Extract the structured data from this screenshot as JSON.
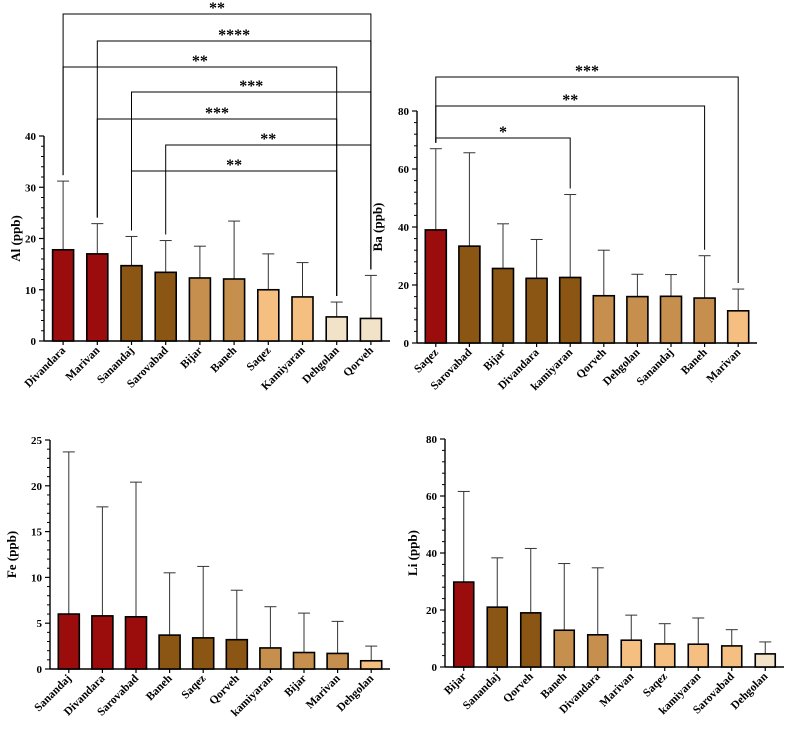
{
  "colors": {
    "dark_red": "#9b0d0d",
    "dark_brown": "#8b5514",
    "tan": "#c68f4d",
    "light_orange": "#f6bf82",
    "cream": "#f1e2c8"
  },
  "chart_data": [
    {
      "id": "al",
      "type": "bar",
      "ylabel": "Al (ppb)",
      "ylim": [
        0,
        40
      ],
      "yticks": [
        "0",
        "10",
        "20",
        "30",
        "40"
      ],
      "categories": [
        "Divandara",
        "Marivan",
        "Sanandaj",
        "Sarovabad",
        "Bijar",
        "Baneh",
        "Saqez",
        "Kamiyaran",
        "Dehgolan",
        "Qorveh"
      ],
      "values": [
        17.8,
        17.0,
        14.7,
        13.4,
        12.3,
        12.1,
        10.0,
        8.6,
        4.7,
        4.4
      ],
      "errors": [
        31.2,
        22.9,
        20.4,
        19.6,
        18.5,
        23.4,
        17.0,
        15.3,
        7.6,
        12.8
      ],
      "colors": [
        "#9b0d0d",
        "#9b0d0d",
        "#8b5514",
        "#8b5514",
        "#c68f4d",
        "#c68f4d",
        "#f6bf82",
        "#f6bf82",
        "#f1e2c8",
        "#f1e2c8"
      ],
      "brackets": [
        {
          "from": 0,
          "to": 9,
          "label": "**"
        },
        {
          "from": 1,
          "to": 9,
          "label": "****"
        },
        {
          "from": 0,
          "to": 8,
          "label": "**"
        },
        {
          "from": 2,
          "to": 9,
          "label": "***"
        },
        {
          "from": 1,
          "to": 8,
          "label": "***"
        },
        {
          "from": 3,
          "to": 9,
          "label": "**"
        },
        {
          "from": 2,
          "to": 8,
          "label": "**"
        }
      ]
    },
    {
      "id": "ba",
      "type": "bar",
      "ylabel": "Ba (ppb)",
      "ylim": [
        0,
        80
      ],
      "yticks": [
        "0",
        "20",
        "40",
        "60",
        "80"
      ],
      "categories": [
        "Saqez",
        "Sarovabad",
        "Bijar",
        "Divandara",
        "kamiyaran",
        "Qorveh",
        "Dehgolan",
        "Sanandaj",
        "Baneh",
        "Marivan"
      ],
      "values": [
        39.0,
        33.4,
        25.7,
        22.3,
        22.6,
        16.3,
        16.0,
        16.1,
        15.5,
        11.1
      ],
      "errors": [
        67.0,
        65.6,
        41.1,
        35.7,
        51.2,
        32.0,
        23.7,
        23.6,
        30.1,
        18.6
      ],
      "colors": [
        "#9b0d0d",
        "#8b5514",
        "#8b5514",
        "#8b5514",
        "#8b5514",
        "#c68f4d",
        "#c68f4d",
        "#c68f4d",
        "#c68f4d",
        "#f6bf82"
      ],
      "brackets": [
        {
          "from": 0,
          "to": 9,
          "label": "***"
        },
        {
          "from": 0,
          "to": 8,
          "label": "**"
        },
        {
          "from": 0,
          "to": 4,
          "label": "*"
        }
      ]
    },
    {
      "id": "fe",
      "type": "bar",
      "ylabel": "Fe (ppb)",
      "ylim": [
        0,
        25
      ],
      "yticks": [
        "0",
        "5",
        "10",
        "15",
        "20",
        "25"
      ],
      "categories": [
        "Sanandaj",
        "Divandara",
        "Sarovabad",
        "Baneh",
        "Saqez",
        "Qorveh",
        "kamiyaran",
        "Bijar",
        "Marivan",
        "Dehgolan"
      ],
      "values": [
        6.0,
        5.8,
        5.7,
        3.7,
        3.4,
        3.2,
        2.3,
        1.8,
        1.7,
        0.9
      ],
      "errors": [
        23.7,
        17.7,
        20.4,
        10.5,
        11.2,
        8.6,
        6.8,
        6.1,
        5.2,
        2.5
      ],
      "colors": [
        "#9b0d0d",
        "#9b0d0d",
        "#9b0d0d",
        "#8b5514",
        "#8b5514",
        "#8b5514",
        "#c68f4d",
        "#c68f4d",
        "#c68f4d",
        "#f6bf82"
      ],
      "brackets": []
    },
    {
      "id": "li",
      "type": "bar",
      "ylabel": "Li (ppb)",
      "ylim": [
        0,
        80
      ],
      "yticks": [
        "0",
        "20",
        "40",
        "60",
        "80"
      ],
      "categories": [
        "Bijar",
        "Sanandaj",
        "Qorveh",
        "Baneh",
        "Divandara",
        "Marivan",
        "Saqez",
        "kamiyaran",
        "Sarovabad",
        "Dehgolan"
      ],
      "values": [
        29.8,
        21.0,
        19.0,
        12.9,
        11.3,
        9.4,
        8.1,
        8.0,
        7.4,
        4.6
      ],
      "errors": [
        61.6,
        38.3,
        41.6,
        36.3,
        34.8,
        18.2,
        15.2,
        17.2,
        13.1,
        8.8
      ],
      "colors": [
        "#9b0d0d",
        "#8b5514",
        "#8b5514",
        "#c68f4d",
        "#c68f4d",
        "#f6bf82",
        "#f6bf82",
        "#f6bf82",
        "#f6bf82",
        "#f1e2c8"
      ],
      "brackets": []
    }
  ]
}
